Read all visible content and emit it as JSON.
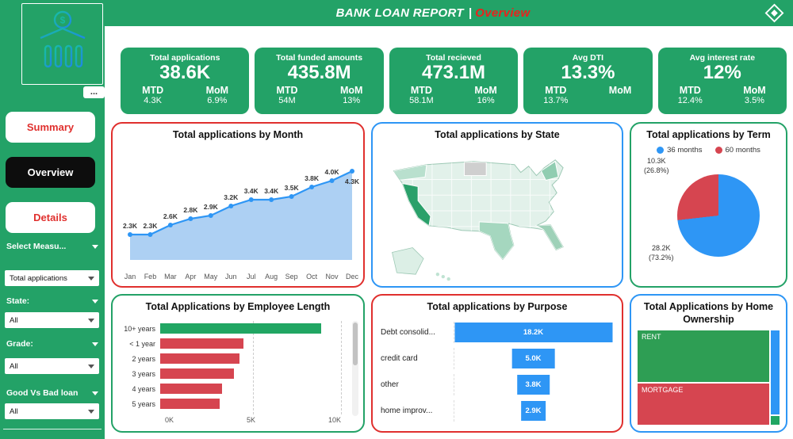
{
  "header": {
    "title": "BANK LOAN REPORT",
    "divider": "|",
    "page": "Overview"
  },
  "sidebar": {
    "more_button": "...",
    "nav": [
      {
        "label": "Summary",
        "active": false
      },
      {
        "label": "Overview",
        "active": true
      },
      {
        "label": "Details",
        "active": false
      }
    ],
    "filters": [
      {
        "label": "Select Measu...",
        "value": "Total applications"
      },
      {
        "label": "State:",
        "value": "All"
      },
      {
        "label": "Grade:",
        "value": "All"
      },
      {
        "label": "Good Vs Bad loan",
        "value": "All"
      }
    ]
  },
  "kpis": {
    "mtd_label": "MTD",
    "mom_label": "MoM",
    "cards": [
      {
        "title": "Total applications",
        "value": "38.6K",
        "mtd": "4.3K",
        "mom": "6.9%"
      },
      {
        "title": "Total funded amounts",
        "value": "435.8M",
        "mtd": "54M",
        "mom": "13%"
      },
      {
        "title": "Total recieved",
        "value": "473.1M",
        "mtd": "58.1M",
        "mom": "16%"
      },
      {
        "title": "Avg DTI",
        "value": "13.3%",
        "mtd": "13.7%",
        "mom": ""
      },
      {
        "title": "Avg interest rate",
        "value": "12%",
        "mtd": "12.4%",
        "mom": "3.5%"
      }
    ]
  },
  "chart_data": [
    {
      "id": "month",
      "type": "area",
      "title": "Total applications by Month",
      "x": [
        "Jan",
        "Feb",
        "Mar",
        "Apr",
        "May",
        "Jun",
        "Jul",
        "Aug",
        "Sep",
        "Oct",
        "Nov",
        "Dec"
      ],
      "values": [
        2.3,
        2.3,
        2.6,
        2.8,
        2.9,
        3.2,
        3.4,
        3.4,
        3.5,
        3.8,
        4.0,
        4.3
      ],
      "labels": [
        "2.3K",
        "2.3K",
        "2.6K",
        "2.8K",
        "2.9K",
        "3.2K",
        "3.4K",
        "3.4K",
        "3.5K",
        "3.8K",
        "4.0K",
        "4.3K"
      ],
      "ylim": [
        1.5,
        4.6
      ],
      "line_color": "#2E96F5",
      "fill_color": "#A9CEF2"
    },
    {
      "id": "state",
      "type": "heatmap",
      "title": "Total applications by State",
      "note": "US choropleth map, green shades; darkest: California; medium: Texas, Florida, New York"
    },
    {
      "id": "term",
      "type": "pie",
      "title": "Total applications by Term",
      "slices": [
        {
          "name": "36 months",
          "value": 28.2,
          "pct": 73.2,
          "value_label": "28.2K",
          "pct_label": "(73.2%)",
          "color": "#2E96F5"
        },
        {
          "name": "60 months",
          "value": 10.3,
          "pct": 26.8,
          "value_label": "10.3K",
          "pct_label": "(26.8%)",
          "color": "#D64550"
        }
      ]
    },
    {
      "id": "employee",
      "type": "bar",
      "title": "Total Applications by Employee Length",
      "categories": [
        "10+ years",
        "< 1 year",
        "2 years",
        "3 years",
        "4 years",
        "5 years"
      ],
      "values": [
        8.9,
        4.6,
        4.4,
        4.1,
        3.4,
        3.3
      ],
      "colors": [
        "#21A663",
        "#D64550",
        "#D64550",
        "#D64550",
        "#D64550",
        "#D64550"
      ],
      "xmax": 10,
      "x_ticks": [
        "0K",
        "5K",
        "10K"
      ]
    },
    {
      "id": "purpose",
      "type": "bar",
      "title": "Total applications by Purpose",
      "categories": [
        "Debt consolid...",
        "credit card",
        "other",
        "home improv..."
      ],
      "values": [
        18.2,
        5.0,
        3.8,
        2.9
      ],
      "labels": [
        "18.2K",
        "5.0K",
        "3.8K",
        "2.9K"
      ],
      "bar_color": "#2E96F5",
      "xmax": 18.2
    },
    {
      "id": "home",
      "type": "heatmap",
      "title": "Total Applications by Home Ownership",
      "items": [
        {
          "name": "RENT",
          "color": "#2E9E54"
        },
        {
          "name": "MORTGAGE",
          "color": "#D64550"
        },
        {
          "name": "",
          "color": "#2E96F5"
        },
        {
          "name": "",
          "color": "#21A663"
        }
      ]
    }
  ],
  "colors": {
    "green": "#23A267",
    "red": "#E0302E",
    "blue": "#2E96F5",
    "bar_red": "#D64550"
  }
}
